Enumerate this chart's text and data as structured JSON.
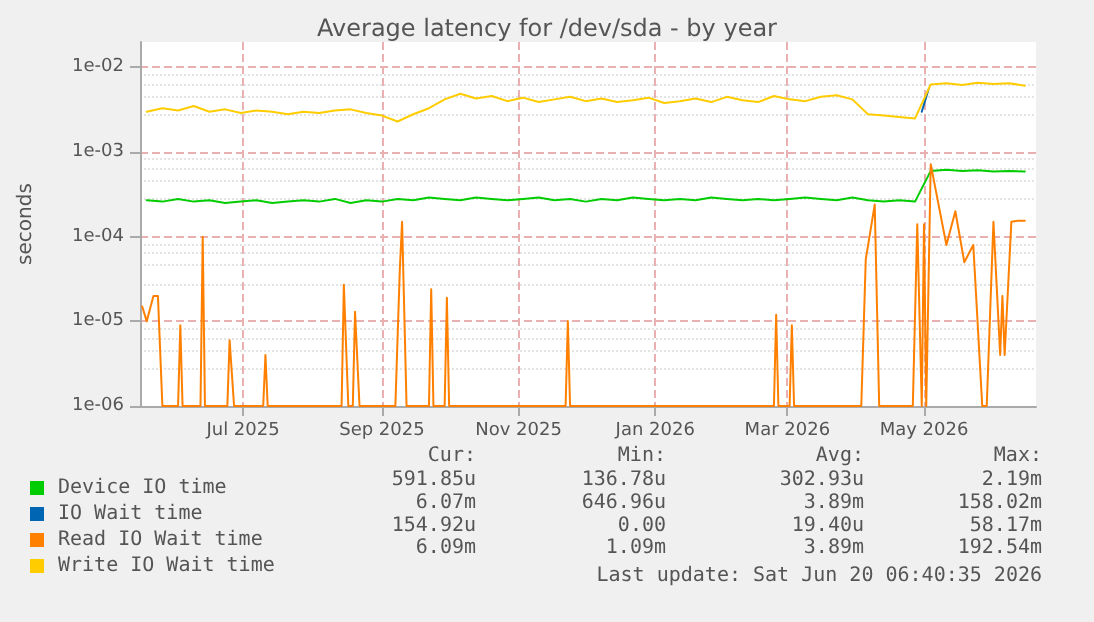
{
  "chart_data": {
    "type": "line",
    "title": "Average latency for /dev/sda - by year",
    "ylabel": "seconds",
    "log": "y",
    "grid": true,
    "legend": "bottom left",
    "marker": "none",
    "line_style": "solid",
    "xlim": [
      "2025-05-16",
      "2026-06-20"
    ],
    "xticks": [
      {
        "value": "2025-07-01",
        "label": "Jul 2025"
      },
      {
        "value": "2025-09-01",
        "label": "Sep 2025"
      },
      {
        "value": "2025-11-01",
        "label": "Nov 2025"
      },
      {
        "value": "2026-01-01",
        "label": "Jan 2026"
      },
      {
        "value": "2026-03-01",
        "label": "Mar 2026"
      },
      {
        "value": "2026-05-01",
        "label": "May 2026"
      }
    ],
    "ylim": [
      1e-06,
      0.02
    ],
    "yticks": [
      {
        "value": 1e-06,
        "label": "1e-06"
      },
      {
        "value": 1e-05,
        "label": "1e-05"
      },
      {
        "value": 0.0001,
        "label": "1e-04"
      },
      {
        "value": 0.001,
        "label": "1e-03"
      },
      {
        "value": 0.01,
        "label": "1e-02"
      }
    ],
    "x": [
      "2025-05-19",
      "2025-05-26",
      "2025-06-02",
      "2025-06-09",
      "2025-06-16",
      "2025-06-23",
      "2025-06-30",
      "2025-07-07",
      "2025-07-14",
      "2025-07-21",
      "2025-07-28",
      "2025-08-04",
      "2025-08-11",
      "2025-08-18",
      "2025-08-25",
      "2025-09-01",
      "2025-09-08",
      "2025-09-15",
      "2025-09-22",
      "2025-09-29",
      "2025-10-06",
      "2025-10-13",
      "2025-10-20",
      "2025-10-27",
      "2025-11-03",
      "2025-11-10",
      "2025-11-17",
      "2025-11-24",
      "2025-12-01",
      "2025-12-08",
      "2025-12-15",
      "2025-12-22",
      "2025-12-29",
      "2026-01-05",
      "2026-01-12",
      "2026-01-19",
      "2026-01-26",
      "2026-02-02",
      "2026-02-09",
      "2026-02-16",
      "2026-02-23",
      "2026-03-02",
      "2026-03-09",
      "2026-03-16",
      "2026-03-23",
      "2026-03-30",
      "2026-04-06",
      "2026-04-13",
      "2026-04-20",
      "2026-04-27",
      "2026-05-04",
      "2026-05-11",
      "2026-05-18",
      "2026-05-25",
      "2026-06-01",
      "2026-06-08",
      "2026-06-15"
    ],
    "series": [
      {
        "name": "Device IO time",
        "color": "#00cc00",
        "values": [
          0.00027,
          0.00026,
          0.00028,
          0.00026,
          0.00027,
          0.00025,
          0.00026,
          0.00027,
          0.00025,
          0.00026,
          0.00027,
          0.00026,
          0.00028,
          0.00025,
          0.00027,
          0.00026,
          0.00028,
          0.00027,
          0.00029,
          0.00028,
          0.00027,
          0.00029,
          0.00028,
          0.00027,
          0.00028,
          0.00029,
          0.00027,
          0.00028,
          0.00026,
          0.00028,
          0.00027,
          0.00029,
          0.00028,
          0.00027,
          0.00028,
          0.00027,
          0.00029,
          0.00028,
          0.00027,
          0.00028,
          0.00027,
          0.00028,
          0.00029,
          0.00028,
          0.00027,
          0.00029,
          0.00027,
          0.00026,
          0.00027,
          0.00026,
          0.0006,
          0.00062,
          0.0006,
          0.00061,
          0.00059,
          0.0006,
          0.00059
        ]
      },
      {
        "name": "IO Wait time",
        "color": "#0066b3",
        "x": [
          "2026-04-30",
          "2026-05-03"
        ],
        "values": [
          0.003,
          0.0055
        ]
      },
      {
        "name": "Read IO Wait time",
        "color": "#ff8000",
        "x": [
          "2025-05-17",
          "2025-05-19",
          "2025-05-22",
          "2025-05-24",
          "2025-05-26",
          "2025-05-28",
          "2025-06-02",
          "2025-06-03",
          "2025-06-04",
          "2025-06-12",
          "2025-06-13",
          "2025-06-14",
          "2025-06-24",
          "2025-06-25",
          "2025-06-27",
          "2025-07-10",
          "2025-07-11",
          "2025-07-12",
          "2025-08-14",
          "2025-08-15",
          "2025-08-17",
          "2025-08-19",
          "2025-08-20",
          "2025-08-22",
          "2025-09-07",
          "2025-09-09",
          "2025-09-10",
          "2025-09-12",
          "2025-09-22",
          "2025-09-23",
          "2025-09-24",
          "2025-09-29",
          "2025-09-30",
          "2025-10-01",
          "2025-11-22",
          "2025-11-23",
          "2025-11-24",
          "2026-02-23",
          "2026-02-24",
          "2026-02-25",
          "2026-03-02",
          "2026-03-03",
          "2026-03-04",
          "2026-04-03",
          "2026-04-05",
          "2026-04-09",
          "2026-04-11",
          "2026-04-26",
          "2026-04-28",
          "2026-04-30",
          "2026-05-01",
          "2026-05-02",
          "2026-05-04",
          "2026-05-07",
          "2026-05-11",
          "2026-05-15",
          "2026-05-19",
          "2026-05-23",
          "2026-05-27",
          "2026-05-28",
          "2026-05-29",
          "2026-06-01",
          "2026-06-04",
          "2026-06-05",
          "2026-06-06",
          "2026-06-09",
          "2026-06-12",
          "2026-06-15"
        ],
        "values": [
          1.5e-05,
          1e-05,
          2e-05,
          2e-05,
          1e-06,
          1e-06,
          1e-06,
          9e-06,
          1e-06,
          1e-06,
          0.0001,
          1e-06,
          1e-06,
          6e-06,
          1e-06,
          1e-06,
          4e-06,
          1e-06,
          1e-06,
          2.7e-05,
          1e-06,
          1e-06,
          1.3e-05,
          1e-06,
          1e-06,
          4.2e-05,
          0.00015,
          1e-06,
          1e-06,
          2.4e-05,
          1e-06,
          1e-06,
          1.9e-05,
          1e-06,
          1e-06,
          1e-05,
          1e-06,
          1e-06,
          1.2e-05,
          1e-06,
          1e-06,
          9e-06,
          1e-06,
          1e-06,
          5.4e-05,
          0.00024,
          1e-06,
          1e-06,
          0.00014,
          1e-06,
          0.00014,
          1e-06,
          0.00072,
          0.00028,
          8e-05,
          0.0002,
          5e-05,
          8e-05,
          1e-06,
          1e-06,
          1e-06,
          0.00015,
          4e-06,
          2e-05,
          4e-06,
          0.00015,
          0.000155,
          0.000155
        ]
      },
      {
        "name": "Write IO Wait time",
        "color": "#ffcc00",
        "values": [
          0.003,
          0.0033,
          0.0031,
          0.0035,
          0.003,
          0.0032,
          0.0029,
          0.0031,
          0.003,
          0.0028,
          0.003,
          0.0029,
          0.0031,
          0.0032,
          0.0029,
          0.0027,
          0.0023,
          0.0028,
          0.0033,
          0.0042,
          0.0049,
          0.0043,
          0.0046,
          0.004,
          0.0044,
          0.0039,
          0.0042,
          0.0045,
          0.004,
          0.0043,
          0.0039,
          0.0041,
          0.0044,
          0.0038,
          0.004,
          0.0043,
          0.0039,
          0.0045,
          0.0041,
          0.0039,
          0.0046,
          0.0042,
          0.004,
          0.0045,
          0.0047,
          0.0042,
          0.0028,
          0.0027,
          0.0026,
          0.0025,
          0.0063,
          0.0065,
          0.0062,
          0.0066,
          0.0064,
          0.0065,
          0.0061
        ]
      }
    ],
    "annotations": [
      "Cur:",
      "Min:",
      "Avg:",
      "Max:",
      "591.85u",
      "136.78u",
      "302.93u",
      "2.19m",
      "6.07m",
      "646.96u",
      "3.89m",
      "158.02m",
      "154.92u",
      "0.00",
      "19.40u",
      "58.17m",
      "6.09m",
      "1.09m",
      "3.89m",
      "192.54m",
      "Last update: Sat Jun 20 06:40:35 2026"
    ]
  }
}
